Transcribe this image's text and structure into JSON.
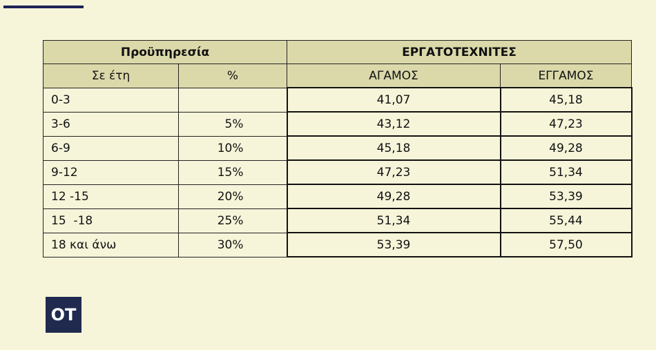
{
  "table": {
    "header": {
      "group_left": "Προϋπηρεσία",
      "group_right": "ΕΡΓΑΤΟΤΕΧΝΙΤΕΣ",
      "columns": [
        "Σε έτη",
        "%",
        "ΑΓΑΜΟΣ",
        "ΕΓΓΑΜΟΣ"
      ]
    },
    "rows": [
      {
        "years": "0-3",
        "agamos": "41,07",
        "eggamos": "45,18"
      },
      {
        "years": "3-6",
        "percent": "5%",
        "agamos": "43,12",
        "eggamos": "47,23"
      },
      {
        "years": "6-9",
        "percent": "10%",
        "agamos": "45,18",
        "eggamos": "49,28"
      },
      {
        "years": "9-12",
        "percent": "15%",
        "agamos": "47,23",
        "eggamos": "51,34"
      },
      {
        "years": "12 -15",
        "percent": "20%",
        "agamos": "49,28",
        "eggamos": "53,39"
      },
      {
        "years": "15  -18",
        "percent": "25%",
        "agamos": "51,34",
        "eggamos": "55,44"
      },
      {
        "years": "18 και άνω",
        "percent": "30%",
        "agamos": "53,39",
        "eggamos": "57,50"
      }
    ]
  },
  "logo": "OT"
}
